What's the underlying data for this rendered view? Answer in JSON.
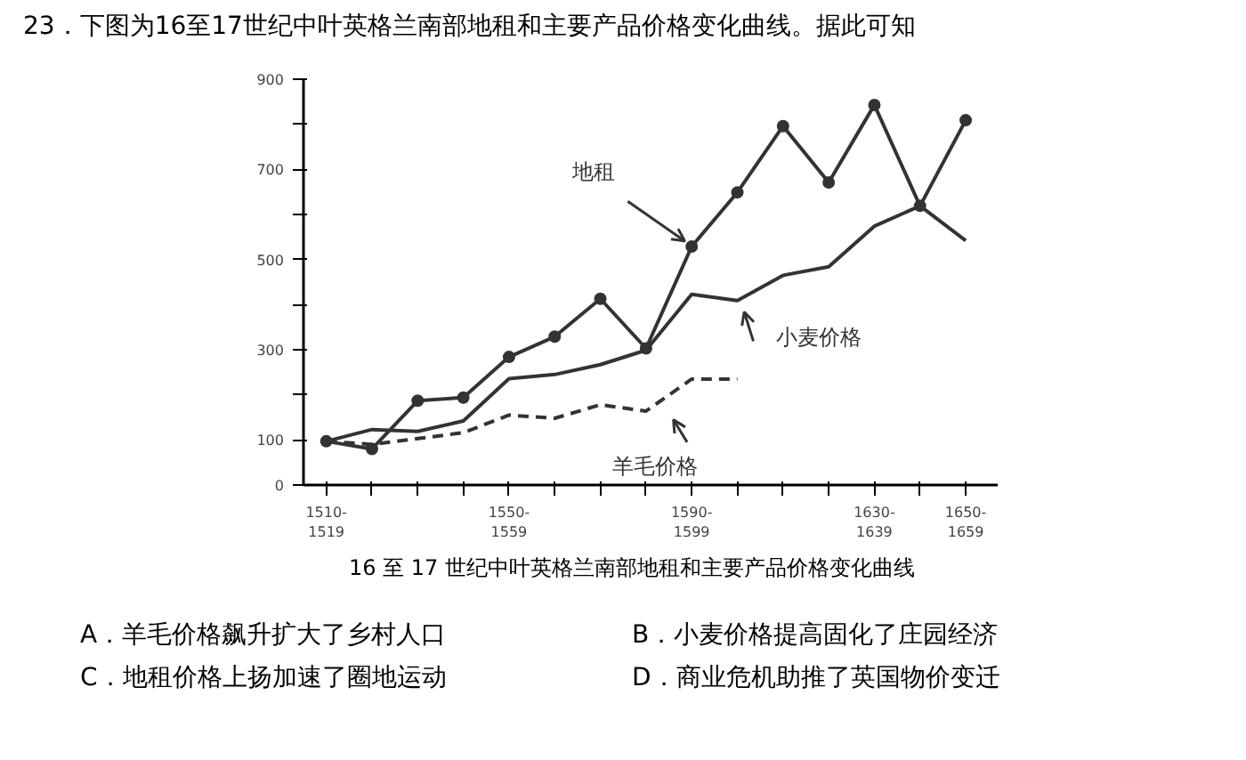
{
  "chart_data": {
    "type": "line",
    "title": "23．下图为16至17世纪中叶英格兰南部地租和主要产品价格变化曲线。据此可知",
    "categories": [
      "1510-\n1519",
      null,
      null,
      null,
      "1550-\n1559",
      null,
      null,
      null,
      "1590-\n1599",
      null,
      null,
      null,
      "1630-\n1639",
      null,
      "1650-\n1659"
    ],
    "series": [
      {
        "name": "地租",
        "color": "#333333",
        "marker": "circle",
        "line_style": "solid",
        "values": [
          97,
          80,
          187,
          194,
          284,
          329,
          413,
          303,
          529,
          649,
          796,
          671,
          843,
          619,
          809
        ]
      },
      {
        "name": "小麦价格",
        "color": "#333333",
        "marker": "none",
        "line_style": "solid",
        "values": [
          97,
          123,
          119,
          142,
          236,
          245,
          267,
          299,
          423,
          409,
          465,
          484,
          574,
          619,
          542
        ]
      },
      {
        "name": "羊毛价格",
        "color": "#333333",
        "marker": "none",
        "line_style": "dashed",
        "values": [
          97,
          90,
          103,
          116,
          155,
          148,
          178,
          164,
          235,
          235,
          null,
          null,
          null,
          null,
          null
        ]
      }
    ],
    "ylim": [
      0,
      900
    ],
    "yticks": [
      0,
      100,
      {
        "value": 200,
        "label": null
      },
      300,
      {
        "value": 400,
        "label": null
      },
      500,
      {
        "value": 600,
        "label": null
      },
      700,
      {
        "value": 800,
        "label": null
      },
      900
    ],
    "grid": false,
    "annotations": [
      "16 至 17 世纪中叶英格兰南部地租和主要产品价格变化曲线",
      "A．羊毛价格飙升扩大了乡村人口",
      "B．小麦价格提高固化了庄园经济",
      "C．地租价格上扬加速了圈地运动",
      "D．商业危机助推了英国物价变迁"
    ]
  }
}
